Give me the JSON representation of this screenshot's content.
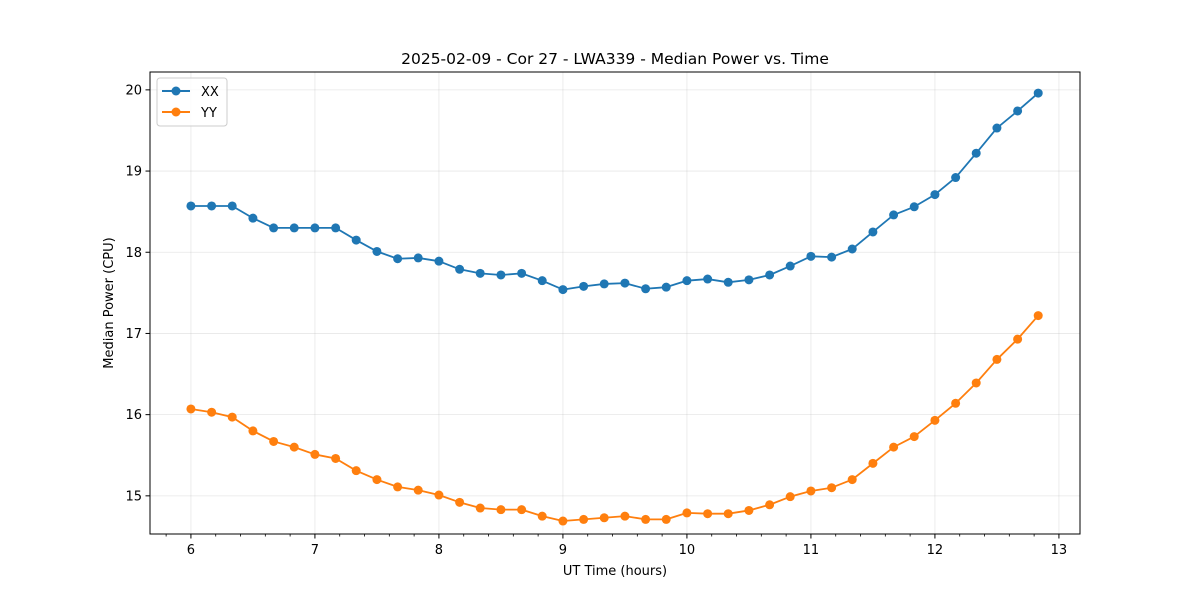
{
  "chart_data": {
    "type": "line",
    "title": "2025-02-09 - Cor 27 - LWA339 - Median Power vs. Time",
    "xlabel": "UT Time (hours)",
    "ylabel": "Median Power (CPU)",
    "xlim": [
      5.67,
      13.17
    ],
    "ylim": [
      14.53,
      20.22
    ],
    "xticks": [
      6,
      7,
      8,
      9,
      10,
      11,
      12,
      13
    ],
    "yticks": [
      15,
      16,
      17,
      18,
      19,
      20
    ],
    "grid": true,
    "legend_position": "top-left",
    "x": [
      6.0,
      6.167,
      6.333,
      6.5,
      6.667,
      6.833,
      7.0,
      7.167,
      7.333,
      7.5,
      7.667,
      7.833,
      8.0,
      8.167,
      8.333,
      8.5,
      8.667,
      8.833,
      9.0,
      9.167,
      9.333,
      9.5,
      9.667,
      9.833,
      10.0,
      10.167,
      10.333,
      10.5,
      10.667,
      10.833,
      11.0,
      11.167,
      11.333,
      11.5,
      11.667,
      11.833,
      12.0,
      12.167,
      12.333,
      12.5,
      12.667,
      12.833
    ],
    "series": [
      {
        "name": "XX",
        "color": "#1f77b4",
        "values": [
          18.57,
          18.57,
          18.57,
          18.42,
          18.3,
          18.3,
          18.3,
          18.3,
          18.15,
          18.01,
          17.92,
          17.93,
          17.89,
          17.79,
          17.74,
          17.72,
          17.74,
          17.65,
          17.54,
          17.58,
          17.61,
          17.62,
          17.55,
          17.57,
          17.65,
          17.67,
          17.63,
          17.66,
          17.72,
          17.83,
          17.95,
          17.94,
          18.04,
          18.25,
          18.46,
          18.56,
          18.71,
          18.92,
          19.22,
          19.53,
          19.74,
          19.96
        ]
      },
      {
        "name": "YY",
        "color": "#ff7f0e",
        "values": [
          16.07,
          16.03,
          15.97,
          15.8,
          15.67,
          15.6,
          15.51,
          15.46,
          15.31,
          15.2,
          15.11,
          15.07,
          15.01,
          14.92,
          14.85,
          14.83,
          14.83,
          14.75,
          14.69,
          14.71,
          14.73,
          14.75,
          14.71,
          14.71,
          14.79,
          14.78,
          14.78,
          14.82,
          14.89,
          14.99,
          15.06,
          15.1,
          15.2,
          15.4,
          15.6,
          15.73,
          15.93,
          16.14,
          16.39,
          16.68,
          16.93,
          17.22
        ]
      }
    ]
  }
}
